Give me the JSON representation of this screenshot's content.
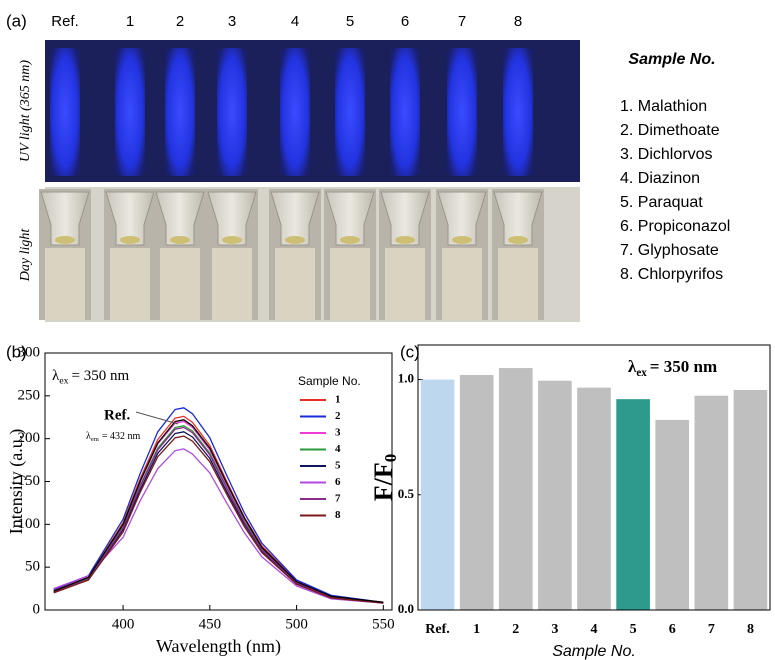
{
  "panel_a": {
    "label": "(a)",
    "columns": [
      "Ref.",
      "1",
      "2",
      "3",
      "4",
      "5",
      "6",
      "7",
      "8"
    ],
    "row_labels": [
      "UV light (365 nm)",
      "Day light"
    ],
    "legend_title": "Sample No.",
    "samples": [
      "1. Malathion",
      "2. Dimethoate",
      "3. Dichlorvos",
      "4. Diazinon",
      "5. Paraquat",
      "6. Propiconazol",
      "7. Glyphosate",
      "8. Chlorpyrifos"
    ]
  },
  "chart_data": [
    {
      "type": "line",
      "panel_label": "(b)",
      "x": [
        360,
        380,
        400,
        410,
        420,
        430,
        435,
        440,
        450,
        460,
        470,
        480,
        500,
        520,
        550
      ],
      "xlim": [
        355,
        555
      ],
      "xticks": [
        400,
        450,
        500,
        550
      ],
      "ylim": [
        0,
        300
      ],
      "yticks": [
        0,
        50,
        100,
        150,
        200,
        250,
        300
      ],
      "x_label": "Wavelength (nm)",
      "y_label": "Intensity (a.u.)",
      "legend_title": "Sample No.",
      "annotation": {
        "symbol": "λ",
        "subscript": "ex",
        "text": "= 350 nm"
      },
      "reference": {
        "label": "Ref.",
        "color": "#000000",
        "values": [
          22,
          38,
          100,
          151,
          195,
          220,
          222,
          215,
          189,
          147,
          107,
          73,
          33,
          16,
          9
        ],
        "emission": {
          "symbol": "λ",
          "subscript": "em",
          "text": "= 432 nm"
        }
      },
      "series": [
        {
          "name": "1",
          "color": "#e8302a",
          "values": [
            23,
            38,
            102,
            154,
            199,
            224,
            226,
            219,
            192,
            149,
            108,
            75,
            34,
            16,
            9
          ]
        },
        {
          "name": "2",
          "color": "#1a2ad8",
          "values": [
            24,
            40,
            106,
            160,
            208,
            234,
            236,
            229,
            201,
            156,
            113,
            78,
            35,
            17,
            9
          ]
        },
        {
          "name": "3",
          "color": "#f23cd8",
          "values": [
            22,
            37,
            99,
            150,
            194,
            218,
            220,
            213,
            187,
            145,
            106,
            73,
            33,
            15,
            9
          ]
        },
        {
          "name": "4",
          "color": "#2a9a3a",
          "values": [
            22,
            37,
            97,
            146,
            189,
            213,
            215,
            209,
            183,
            142,
            103,
            71,
            32,
            15,
            9
          ]
        },
        {
          "name": "5",
          "color": "#10145e",
          "values": [
            21,
            35,
            94,
            141,
            183,
            206,
            208,
            202,
            177,
            137,
            100,
            69,
            31,
            15,
            8
          ]
        },
        {
          "name": "6",
          "color": "#b04ae0",
          "values": [
            25,
            40,
            85,
            128,
            165,
            186,
            188,
            182,
            160,
            124,
            90,
            62,
            28,
            13,
            8
          ]
        },
        {
          "name": "7",
          "color": "#8a2c8c",
          "values": [
            21,
            36,
            96,
            145,
            187,
            211,
            213,
            207,
            181,
            141,
            102,
            70,
            32,
            15,
            9
          ]
        },
        {
          "name": "8",
          "color": "#7a1a1a",
          "values": [
            20,
            35,
            91,
            138,
            179,
            201,
            203,
            197,
            173,
            134,
            97,
            67,
            30,
            14,
            8
          ]
        }
      ]
    },
    {
      "type": "bar",
      "panel_label": "(c)",
      "categories": [
        "Ref.",
        "1",
        "2",
        "3",
        "4",
        "5",
        "6",
        "7",
        "8"
      ],
      "values": [
        1.0,
        1.02,
        1.05,
        0.995,
        0.965,
        0.915,
        0.825,
        0.93,
        0.955
      ],
      "colors": [
        "#bdd7ee",
        "#bfbfbf",
        "#bfbfbf",
        "#bfbfbf",
        "#bfbfbf",
        "#2e9a8e",
        "#bfbfbf",
        "#bfbfbf",
        "#bfbfbf"
      ],
      "ylim": [
        0,
        1.15
      ],
      "yticks": [
        {
          "value": 0,
          "label": "0.0"
        },
        {
          "value": 0.5,
          "label": "0.5"
        },
        {
          "value": 1.0,
          "label": "1.0"
        }
      ],
      "x_label": "Sample No.",
      "y_label": {
        "text": "F/F",
        "subscript": "0"
      },
      "annotation": {
        "symbol": "λ",
        "subscript": "ex",
        "text": "= 350 nm"
      }
    }
  ]
}
